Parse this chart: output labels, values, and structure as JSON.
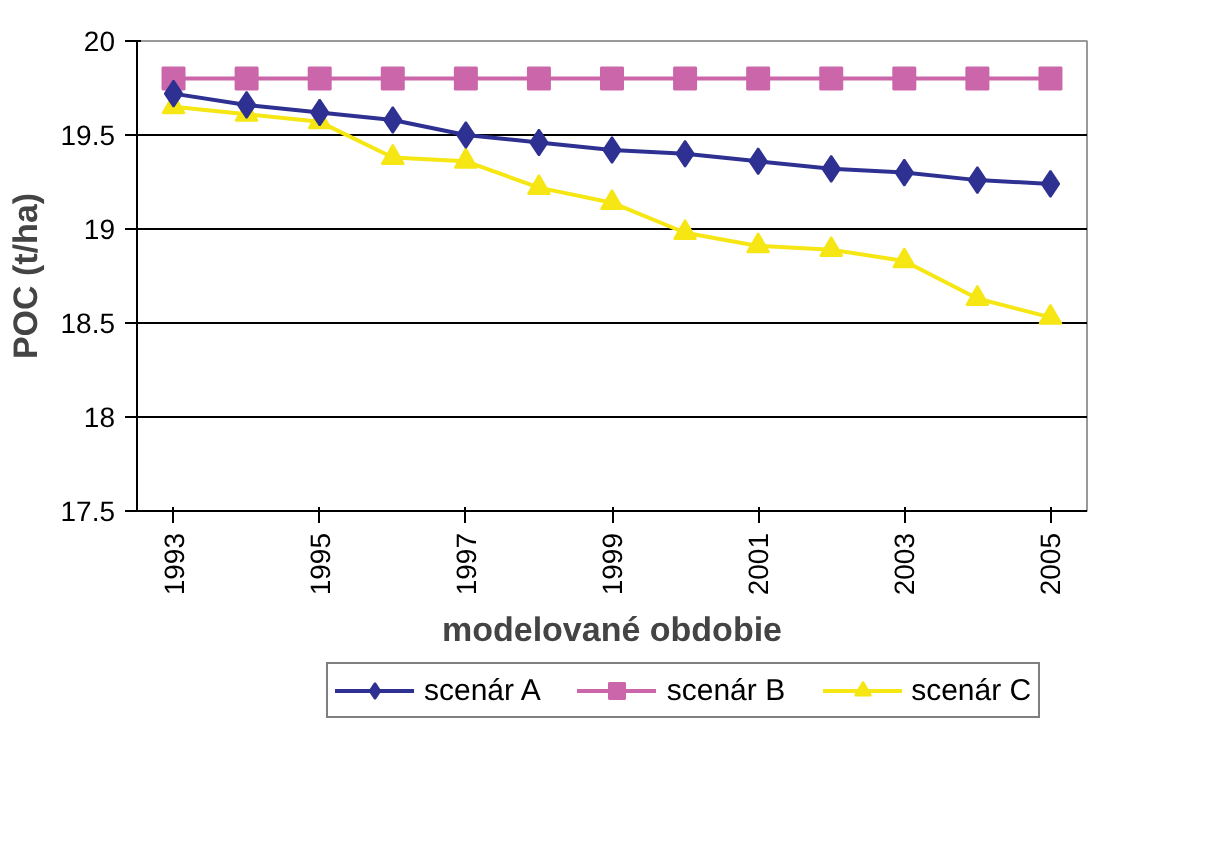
{
  "chart_data": {
    "type": "line",
    "xlabel": "modelované obdobie",
    "ylabel": "POC (t/ha)",
    "categories": [
      "1993",
      null,
      "1995",
      null,
      "1997",
      null,
      "1999",
      null,
      "2001",
      null,
      "2003",
      null,
      "2005"
    ],
    "series": [
      {
        "name": "scenár A",
        "color": "#2e3192",
        "marker": "diamond",
        "values": [
          19.72,
          19.66,
          19.62,
          19.58,
          19.5,
          19.46,
          19.42,
          19.4,
          19.36,
          19.32,
          19.3,
          19.26,
          19.24
        ]
      },
      {
        "name": "scenár B",
        "color": "#cc66aa",
        "marker": "square",
        "values": [
          19.8,
          19.8,
          19.8,
          19.8,
          19.8,
          19.8,
          19.8,
          19.8,
          19.8,
          19.8,
          19.8,
          19.8,
          19.8
        ]
      },
      {
        "name": "scenár C",
        "color": "#f5e614",
        "marker": "triangle",
        "values": [
          19.65,
          19.61,
          19.57,
          19.38,
          19.36,
          19.22,
          19.14,
          18.98,
          18.91,
          18.89,
          18.83,
          18.63,
          18.53
        ]
      }
    ],
    "ylim": [
      17.5,
      20
    ],
    "yticks": [
      17.5,
      18,
      18.5,
      19,
      19.5,
      20
    ],
    "grid": "y",
    "legend": "bottom",
    "line_style": "solid"
  }
}
